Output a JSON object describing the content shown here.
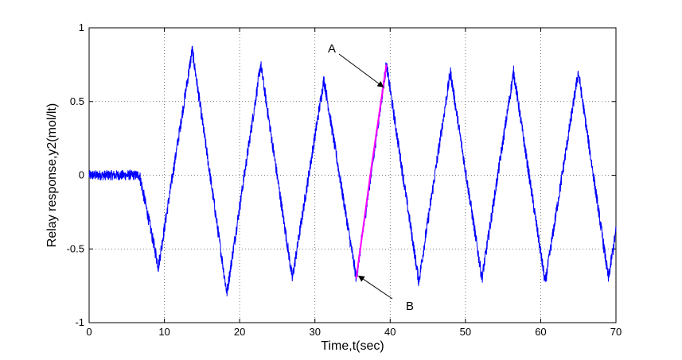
{
  "chart_data": {
    "type": "line",
    "title": "",
    "xlabel": "Time,t(sec)",
    "ylabel": "Relay response,y2(mol/lt)",
    "xlim": [
      0,
      70
    ],
    "ylim": [
      -1,
      1
    ],
    "x_ticks": [
      "0",
      "10",
      "20",
      "30",
      "40",
      "50",
      "60",
      "70"
    ],
    "y_ticks": [
      "-1",
      "-0.5",
      "0",
      "0.5",
      "1"
    ],
    "grid": true,
    "legend": "none",
    "series": [
      {
        "color": "#0000ff",
        "x": [
          0,
          6.7,
          9.2,
          13.7,
          18.3,
          22.8,
          27.0,
          31.2,
          35.5,
          39.5,
          43.8,
          48.0,
          52.2,
          56.4,
          60.6,
          65.0,
          69.0,
          70
        ],
        "y": [
          0.0,
          0.0,
          -0.62,
          0.85,
          -0.8,
          0.75,
          -0.7,
          0.65,
          -0.7,
          0.75,
          -0.72,
          0.7,
          -0.7,
          0.7,
          -0.73,
          0.7,
          -0.7,
          -0.38
        ]
      },
      {
        "color": "#ff00ff",
        "x": [
          35.5,
          37.5,
          39.5
        ],
        "y": [
          -0.7,
          0.05,
          0.75
        ]
      }
    ],
    "annotations": [
      {
        "label": "A",
        "x": 39.5,
        "y": 0.75
      },
      {
        "label": "B",
        "x": 35.5,
        "y": -0.7
      }
    ]
  }
}
